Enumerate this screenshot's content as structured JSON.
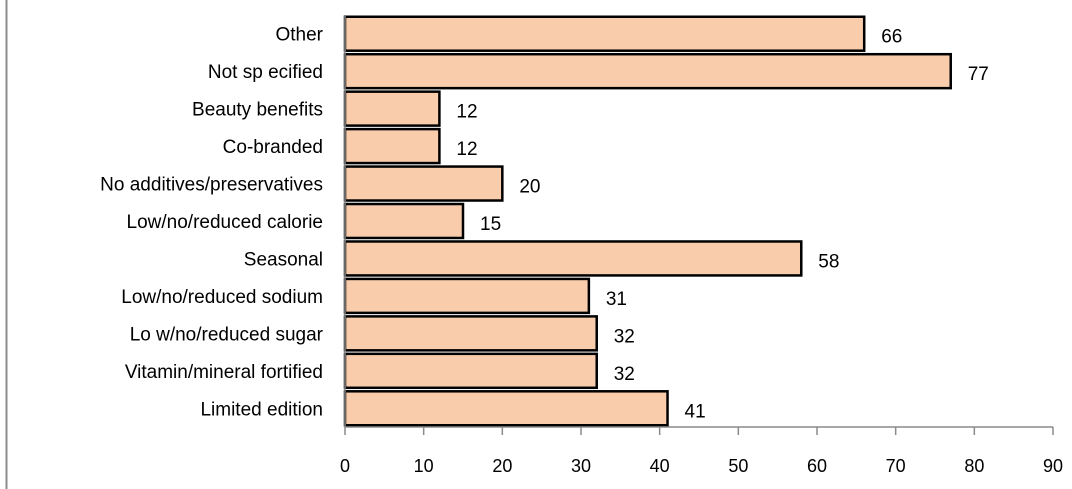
{
  "chart_data": {
    "type": "bar",
    "orientation": "horizontal",
    "title": "",
    "xlabel": "",
    "ylabel": "",
    "categories": [
      "Other",
      "Not sp ecified",
      "Beauty benefits",
      "Co-branded",
      "No additives/preservatives",
      "Low/no/reduced calorie",
      "Seasonal",
      "Low/no/reduced sodium",
      "Lo w/no/reduced sugar",
      "Vitamin/mineral fortified",
      "Limited edition"
    ],
    "values": [
      66,
      77,
      12,
      12,
      20,
      15,
      58,
      31,
      32,
      32,
      41
    ],
    "xlim": [
      0,
      90
    ],
    "xticks": [
      0,
      10,
      20,
      30,
      40,
      50,
      60,
      70,
      80,
      90
    ],
    "grid": false,
    "legend": "none",
    "bar_color": "#F9CCAB",
    "bar_edge_color": "#000000",
    "axis_color": "#8A8A8A"
  }
}
